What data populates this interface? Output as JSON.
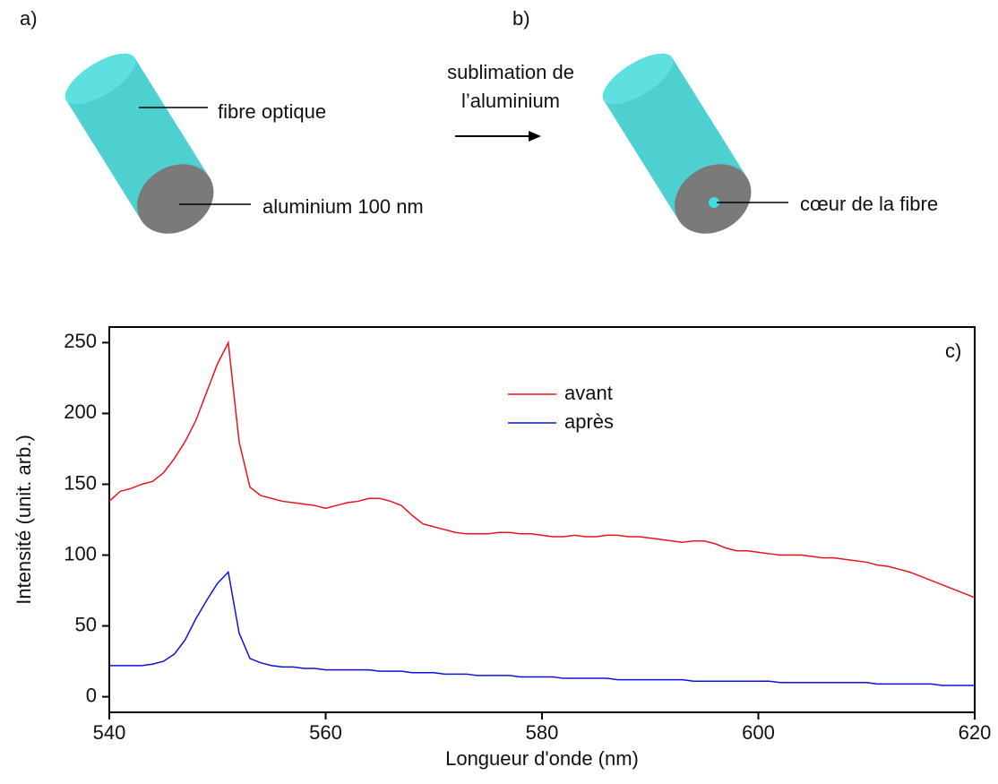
{
  "diagram": {
    "panel_a": "a)",
    "panel_b": "b)",
    "label_fibre": "fibre optique",
    "label_aluminium": "aluminium 100 nm",
    "arrow_line1": "sublimation de",
    "arrow_line2": "l’aluminium",
    "label_coeur": "cœur de la fibre"
  },
  "chart_data": {
    "type": "line",
    "annotation": "c)",
    "x_label": "Longueur d'onde (nm)",
    "y_label": "Intensité (unit. arb.)",
    "x": [
      540,
      541,
      542,
      543,
      544,
      545,
      546,
      547,
      548,
      549,
      550,
      551,
      552,
      553,
      554,
      555,
      556,
      557,
      558,
      559,
      560,
      561,
      562,
      563,
      564,
      565,
      566,
      567,
      568,
      569,
      570,
      571,
      572,
      573,
      574,
      575,
      576,
      577,
      578,
      579,
      580,
      581,
      582,
      583,
      584,
      585,
      586,
      587,
      588,
      589,
      590,
      591,
      592,
      593,
      594,
      595,
      596,
      597,
      598,
      599,
      600,
      601,
      602,
      603,
      604,
      605,
      606,
      607,
      608,
      609,
      610,
      611,
      612,
      613,
      614,
      615,
      616,
      617,
      618,
      619,
      620
    ],
    "series": [
      {
        "name": "avant",
        "color": "#e8141c",
        "values": [
          138,
          145,
          147,
          150,
          152,
          158,
          168,
          180,
          195,
          215,
          235,
          250,
          180,
          148,
          142,
          140,
          138,
          137,
          136,
          135,
          133,
          135,
          137,
          138,
          140,
          140,
          138,
          135,
          128,
          122,
          120,
          118,
          116,
          115,
          115,
          115,
          116,
          116,
          115,
          115,
          114,
          113,
          113,
          114,
          113,
          113,
          114,
          114,
          113,
          113,
          112,
          111,
          110,
          109,
          110,
          110,
          108,
          105,
          103,
          103,
          102,
          101,
          100,
          100,
          100,
          99,
          98,
          98,
          97,
          96,
          95,
          93,
          92,
          90,
          88,
          85,
          82,
          79,
          76,
          73,
          70
        ]
      },
      {
        "name": "après",
        "color": "#1010d8",
        "values": [
          22,
          22,
          22,
          22,
          23,
          25,
          30,
          40,
          55,
          68,
          80,
          88,
          45,
          27,
          24,
          22,
          21,
          21,
          20,
          20,
          19,
          19,
          19,
          19,
          19,
          18,
          18,
          18,
          17,
          17,
          17,
          16,
          16,
          16,
          15,
          15,
          15,
          15,
          14,
          14,
          14,
          14,
          13,
          13,
          13,
          13,
          13,
          12,
          12,
          12,
          12,
          12,
          12,
          12,
          11,
          11,
          11,
          11,
          11,
          11,
          11,
          11,
          10,
          10,
          10,
          10,
          10,
          10,
          10,
          10,
          10,
          9,
          9,
          9,
          9,
          9,
          9,
          8,
          8,
          8,
          8
        ]
      }
    ],
    "xlim": [
      540,
      620
    ],
    "ylim": [
      -11,
      261
    ],
    "xticks": [
      540,
      560,
      580,
      600,
      620
    ],
    "yticks": [
      0,
      50,
      100,
      150,
      200,
      250
    ],
    "legend": "upper center"
  }
}
